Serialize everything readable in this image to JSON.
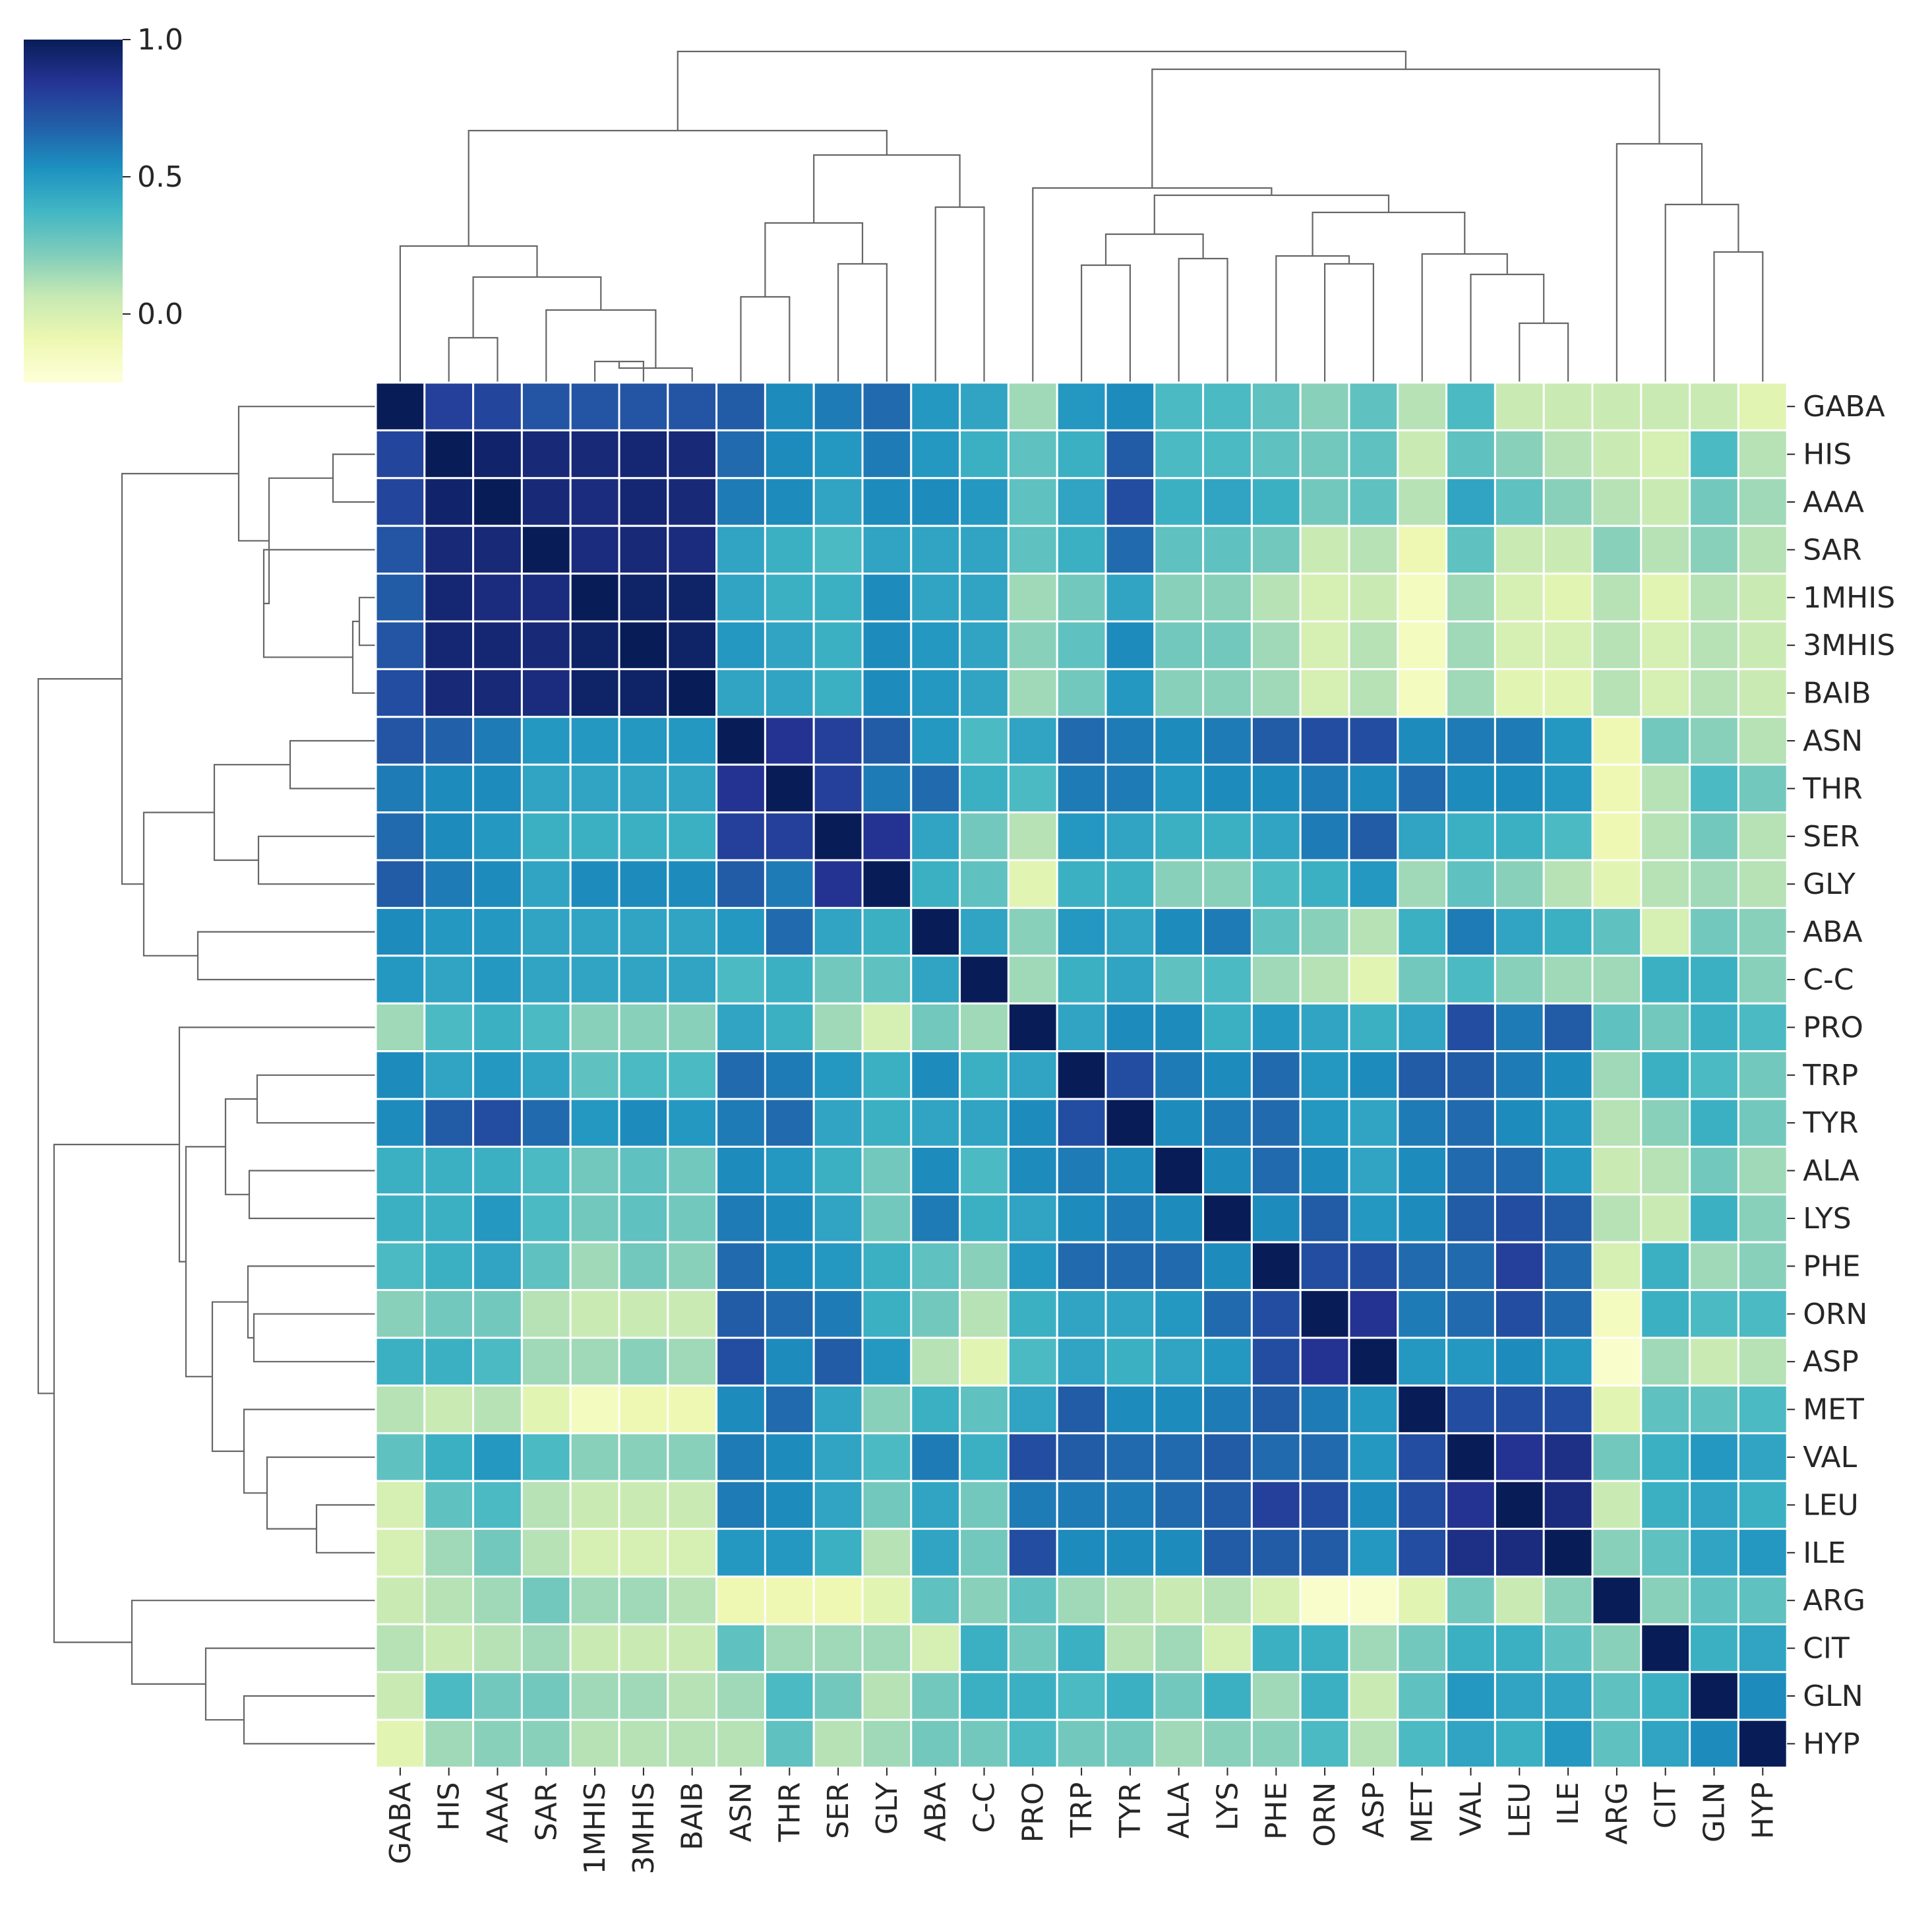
{
  "chart_data": {
    "type": "heatmap",
    "subtype": "clustermap",
    "colormap": "YlGnBu",
    "cmap_stops": [
      "#ffffd9",
      "#edf8b1",
      "#c7e9b4",
      "#7fcdbb",
      "#41b6c4",
      "#1d91c0",
      "#225ea8",
      "#253494",
      "#081d58"
    ],
    "vmin": -0.25,
    "vmax": 1.0,
    "colorbar": {
      "ticks": [
        1.0,
        0.5,
        0.0
      ],
      "tick_labels": [
        "1.0",
        "0.5",
        "0.0"
      ],
      "position": "top-left"
    },
    "row_labels": [
      "GABA",
      "HIS",
      "AAA",
      "SAR",
      "1MHIS",
      "3MHIS",
      "BAIB",
      "ASN",
      "THR",
      "SER",
      "GLY",
      "ABA",
      "C-C",
      "PRO",
      "TRP",
      "TYR",
      "ALA",
      "LYS",
      "PHE",
      "ORN",
      "ASP",
      "MET",
      "VAL",
      "LEU",
      "ILE",
      "ARG",
      "CIT",
      "GLN",
      "HYP"
    ],
    "col_labels": [
      "GABA",
      "HIS",
      "AAA",
      "SAR",
      "1MHIS",
      "3MHIS",
      "BAIB",
      "ASN",
      "THR",
      "SER",
      "GLY",
      "ABA",
      "C-C",
      "PRO",
      "TRP",
      "TYR",
      "ALA",
      "LYS",
      "PHE",
      "ORN",
      "ASP",
      "MET",
      "VAL",
      "LEU",
      "ILE",
      "ARG",
      "CIT",
      "GLN",
      "HYP"
    ],
    "values": [
      [
        1.0,
        0.8,
        0.78,
        0.72,
        0.72,
        0.72,
        0.72,
        0.7,
        0.55,
        0.6,
        0.65,
        0.5,
        0.45,
        0.15,
        0.5,
        0.55,
        0.35,
        0.35,
        0.3,
        0.2,
        0.3,
        0.1,
        0.35,
        0.05,
        0.05,
        0.05,
        0.05,
        0.05,
        -0.05
      ],
      [
        0.78,
        1.0,
        0.95,
        0.92,
        0.92,
        0.93,
        0.92,
        0.65,
        0.55,
        0.5,
        0.6,
        0.5,
        0.4,
        0.3,
        0.4,
        0.7,
        0.35,
        0.35,
        0.3,
        0.25,
        0.3,
        0.05,
        0.3,
        0.2,
        0.1,
        0.05,
        0.0,
        0.35,
        0.1
      ],
      [
        0.78,
        0.95,
        1.0,
        0.92,
        0.9,
        0.93,
        0.92,
        0.6,
        0.55,
        0.45,
        0.55,
        0.55,
        0.5,
        0.3,
        0.45,
        0.75,
        0.4,
        0.45,
        0.4,
        0.25,
        0.3,
        0.1,
        0.45,
        0.3,
        0.2,
        0.1,
        0.05,
        0.25,
        0.15
      ],
      [
        0.72,
        0.92,
        0.92,
        1.0,
        0.9,
        0.92,
        0.9,
        0.45,
        0.4,
        0.35,
        0.45,
        0.45,
        0.45,
        0.3,
        0.4,
        0.65,
        0.3,
        0.3,
        0.25,
        0.05,
        0.1,
        -0.1,
        0.3,
        0.05,
        0.05,
        0.2,
        0.1,
        0.2,
        0.1
      ],
      [
        0.7,
        0.93,
        0.9,
        0.9,
        1.0,
        0.96,
        0.96,
        0.45,
        0.4,
        0.4,
        0.55,
        0.45,
        0.45,
        0.15,
        0.25,
        0.45,
        0.2,
        0.2,
        0.1,
        0.0,
        0.05,
        -0.15,
        0.15,
        0.0,
        -0.05,
        0.1,
        -0.05,
        0.1,
        0.05
      ],
      [
        0.72,
        0.93,
        0.93,
        0.92,
        0.96,
        1.0,
        0.96,
        0.5,
        0.45,
        0.4,
        0.55,
        0.5,
        0.45,
        0.2,
        0.3,
        0.55,
        0.25,
        0.25,
        0.15,
        0.0,
        0.1,
        -0.15,
        0.15,
        0.0,
        0.0,
        0.1,
        0.0,
        0.1,
        0.05
      ],
      [
        0.75,
        0.92,
        0.92,
        0.9,
        0.96,
        0.96,
        1.0,
        0.45,
        0.45,
        0.4,
        0.55,
        0.5,
        0.45,
        0.15,
        0.25,
        0.5,
        0.2,
        0.2,
        0.15,
        0.0,
        0.1,
        -0.15,
        0.15,
        -0.05,
        -0.05,
        0.1,
        0.0,
        0.1,
        0.05
      ],
      [
        0.72,
        0.68,
        0.6,
        0.5,
        0.5,
        0.5,
        0.5,
        1.0,
        0.85,
        0.8,
        0.7,
        0.5,
        0.35,
        0.45,
        0.65,
        0.6,
        0.55,
        0.6,
        0.7,
        0.75,
        0.75,
        0.55,
        0.6,
        0.6,
        0.5,
        -0.1,
        0.25,
        0.2,
        0.1
      ],
      [
        0.6,
        0.55,
        0.55,
        0.45,
        0.45,
        0.45,
        0.45,
        0.85,
        1.0,
        0.8,
        0.6,
        0.65,
        0.4,
        0.35,
        0.6,
        0.6,
        0.5,
        0.55,
        0.55,
        0.6,
        0.55,
        0.65,
        0.55,
        0.55,
        0.5,
        -0.1,
        0.1,
        0.35,
        0.25
      ],
      [
        0.65,
        0.55,
        0.5,
        0.4,
        0.4,
        0.4,
        0.4,
        0.8,
        0.8,
        1.0,
        0.85,
        0.45,
        0.25,
        0.1,
        0.5,
        0.45,
        0.4,
        0.4,
        0.45,
        0.6,
        0.7,
        0.45,
        0.4,
        0.4,
        0.35,
        -0.1,
        0.1,
        0.25,
        0.1
      ],
      [
        0.7,
        0.6,
        0.55,
        0.45,
        0.55,
        0.55,
        0.55,
        0.7,
        0.6,
        0.85,
        1.0,
        0.4,
        0.3,
        -0.05,
        0.4,
        0.4,
        0.2,
        0.2,
        0.35,
        0.4,
        0.5,
        0.15,
        0.3,
        0.2,
        0.1,
        -0.05,
        0.1,
        0.15,
        0.1
      ],
      [
        0.55,
        0.5,
        0.5,
        0.45,
        0.45,
        0.45,
        0.45,
        0.5,
        0.65,
        0.45,
        0.4,
        1.0,
        0.45,
        0.2,
        0.5,
        0.45,
        0.55,
        0.6,
        0.3,
        0.2,
        0.1,
        0.4,
        0.6,
        0.45,
        0.4,
        0.3,
        0.0,
        0.25,
        0.2
      ],
      [
        0.5,
        0.45,
        0.5,
        0.45,
        0.45,
        0.45,
        0.45,
        0.35,
        0.4,
        0.25,
        0.3,
        0.45,
        1.0,
        0.15,
        0.4,
        0.45,
        0.3,
        0.35,
        0.15,
        0.1,
        -0.05,
        0.25,
        0.35,
        0.2,
        0.15,
        0.15,
        0.4,
        0.4,
        0.2
      ],
      [
        0.15,
        0.35,
        0.4,
        0.35,
        0.2,
        0.2,
        0.2,
        0.45,
        0.4,
        0.15,
        0.0,
        0.25,
        0.15,
        1.0,
        0.45,
        0.55,
        0.55,
        0.4,
        0.5,
        0.45,
        0.4,
        0.45,
        0.75,
        0.6,
        0.7,
        0.3,
        0.25,
        0.4,
        0.35
      ],
      [
        0.55,
        0.45,
        0.5,
        0.45,
        0.3,
        0.35,
        0.35,
        0.65,
        0.6,
        0.5,
        0.4,
        0.55,
        0.4,
        0.45,
        1.0,
        0.75,
        0.6,
        0.55,
        0.65,
        0.5,
        0.55,
        0.7,
        0.7,
        0.6,
        0.55,
        0.15,
        0.4,
        0.35,
        0.25
      ],
      [
        0.55,
        0.7,
        0.75,
        0.65,
        0.5,
        0.55,
        0.5,
        0.6,
        0.65,
        0.45,
        0.4,
        0.45,
        0.45,
        0.55,
        0.75,
        1.0,
        0.55,
        0.6,
        0.65,
        0.5,
        0.45,
        0.6,
        0.65,
        0.55,
        0.5,
        0.1,
        0.2,
        0.4,
        0.25
      ],
      [
        0.4,
        0.4,
        0.4,
        0.35,
        0.25,
        0.3,
        0.25,
        0.55,
        0.5,
        0.4,
        0.25,
        0.55,
        0.35,
        0.55,
        0.6,
        0.55,
        1.0,
        0.55,
        0.65,
        0.55,
        0.45,
        0.55,
        0.65,
        0.65,
        0.5,
        0.05,
        0.1,
        0.25,
        0.15
      ],
      [
        0.4,
        0.4,
        0.5,
        0.35,
        0.25,
        0.3,
        0.25,
        0.6,
        0.55,
        0.45,
        0.25,
        0.6,
        0.4,
        0.45,
        0.55,
        0.6,
        0.55,
        1.0,
        0.55,
        0.7,
        0.5,
        0.55,
        0.7,
        0.75,
        0.7,
        0.1,
        0.05,
        0.4,
        0.2
      ],
      [
        0.35,
        0.4,
        0.45,
        0.3,
        0.15,
        0.25,
        0.2,
        0.65,
        0.55,
        0.5,
        0.4,
        0.3,
        0.2,
        0.5,
        0.65,
        0.65,
        0.65,
        0.55,
        1.0,
        0.75,
        0.75,
        0.65,
        0.65,
        0.8,
        0.65,
        0.0,
        0.4,
        0.15,
        0.2
      ],
      [
        0.2,
        0.25,
        0.25,
        0.1,
        0.05,
        0.05,
        0.05,
        0.7,
        0.65,
        0.6,
        0.4,
        0.25,
        0.1,
        0.4,
        0.45,
        0.45,
        0.5,
        0.65,
        0.75,
        1.0,
        0.85,
        0.6,
        0.65,
        0.75,
        0.65,
        -0.15,
        0.4,
        0.35,
        0.35
      ],
      [
        0.4,
        0.4,
        0.35,
        0.15,
        0.15,
        0.2,
        0.15,
        0.75,
        0.55,
        0.7,
        0.5,
        0.1,
        -0.05,
        0.35,
        0.45,
        0.4,
        0.45,
        0.5,
        0.75,
        0.85,
        1.0,
        0.5,
        0.5,
        0.55,
        0.5,
        -0.2,
        0.15,
        0.05,
        0.1
      ],
      [
        0.1,
        0.05,
        0.1,
        -0.05,
        -0.15,
        -0.1,
        -0.1,
        0.55,
        0.65,
        0.45,
        0.2,
        0.4,
        0.3,
        0.45,
        0.7,
        0.55,
        0.55,
        0.6,
        0.7,
        0.6,
        0.5,
        1.0,
        0.75,
        0.75,
        0.75,
        -0.05,
        0.3,
        0.3,
        0.35
      ],
      [
        0.3,
        0.4,
        0.5,
        0.35,
        0.2,
        0.2,
        0.2,
        0.6,
        0.55,
        0.45,
        0.35,
        0.6,
        0.4,
        0.75,
        0.7,
        0.65,
        0.65,
        0.7,
        0.65,
        0.65,
        0.5,
        0.75,
        1.0,
        0.85,
        0.88,
        0.25,
        0.4,
        0.5,
        0.45
      ],
      [
        0.0,
        0.3,
        0.35,
        0.1,
        0.05,
        0.05,
        0.05,
        0.6,
        0.55,
        0.45,
        0.25,
        0.45,
        0.25,
        0.6,
        0.6,
        0.6,
        0.65,
        0.7,
        0.8,
        0.75,
        0.55,
        0.75,
        0.85,
        1.0,
        0.9,
        0.05,
        0.4,
        0.45,
        0.4
      ],
      [
        0.0,
        0.15,
        0.25,
        0.1,
        0.0,
        0.0,
        0.0,
        0.5,
        0.5,
        0.4,
        0.1,
        0.45,
        0.25,
        0.75,
        0.55,
        0.55,
        0.55,
        0.7,
        0.7,
        0.7,
        0.5,
        0.75,
        0.88,
        0.9,
        1.0,
        0.2,
        0.3,
        0.45,
        0.5
      ],
      [
        0.05,
        0.1,
        0.15,
        0.25,
        0.15,
        0.15,
        0.1,
        -0.1,
        -0.1,
        -0.1,
        -0.05,
        0.3,
        0.2,
        0.3,
        0.15,
        0.1,
        0.05,
        0.1,
        0.0,
        -0.2,
        -0.2,
        -0.05,
        0.25,
        0.05,
        0.2,
        1.0,
        0.2,
        0.3,
        0.3
      ],
      [
        0.1,
        0.05,
        0.1,
        0.15,
        0.05,
        0.05,
        0.05,
        0.3,
        0.15,
        0.15,
        0.15,
        0.0,
        0.4,
        0.25,
        0.4,
        0.1,
        0.15,
        0.0,
        0.4,
        0.4,
        0.15,
        0.25,
        0.4,
        0.4,
        0.3,
        0.2,
        1.0,
        0.4,
        0.45
      ],
      [
        0.05,
        0.35,
        0.25,
        0.25,
        0.15,
        0.15,
        0.1,
        0.15,
        0.35,
        0.25,
        0.1,
        0.25,
        0.4,
        0.4,
        0.35,
        0.4,
        0.25,
        0.4,
        0.15,
        0.4,
        0.05,
        0.3,
        0.5,
        0.45,
        0.45,
        0.3,
        0.4,
        1.0,
        0.55
      ],
      [
        -0.05,
        0.15,
        0.2,
        0.2,
        0.1,
        0.1,
        0.1,
        0.1,
        0.3,
        0.1,
        0.15,
        0.25,
        0.25,
        0.35,
        0.25,
        0.25,
        0.15,
        0.2,
        0.2,
        0.35,
        0.1,
        0.35,
        0.45,
        0.4,
        0.5,
        0.3,
        0.45,
        0.55,
        1.0
      ]
    ]
  }
}
